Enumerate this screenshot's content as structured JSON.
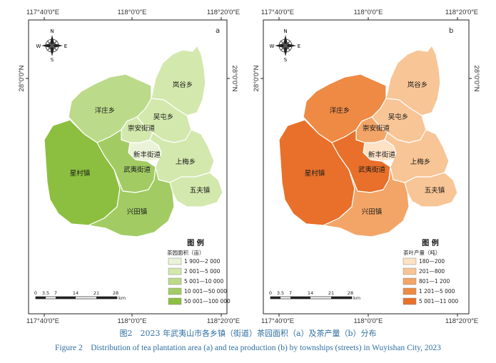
{
  "axes": {
    "top_ticks": [
      "117°40′0″E",
      "118°0′0″E",
      "118°20′0″E"
    ],
    "bottom_ticks": [
      "117°40′0″E",
      "118°0′0″E",
      "118°20′0″E"
    ],
    "lat_label": "28°0′0″N"
  },
  "compass": {
    "n": "N",
    "s": "S",
    "e": "E",
    "w": "W"
  },
  "towns": {
    "langu": "岚谷乡",
    "yangzhuang": "洋庄乡",
    "wutun": "吴屯乡",
    "chongan": "崇安街道",
    "xinfeng": "新丰街道",
    "xingcun": "星村镇",
    "wuyi": "武夷街道",
    "shangmei": "上梅乡",
    "wufu": "五夫镇",
    "xingtian": "兴田镇"
  },
  "panel_a": {
    "letter": "a",
    "legend_title": "图 例",
    "legend_subtitle": "茶园面积（亩）",
    "legend_items": [
      {
        "label": "1 900—2 000",
        "color": "#eaf3d8"
      },
      {
        "label": "2 001—5 000",
        "color": "#d3e8ad"
      },
      {
        "label": "5 001—10 000",
        "color": "#bcdb8a"
      },
      {
        "label": "10 001—50 000",
        "color": "#a2cc63"
      },
      {
        "label": "50 001—100 000",
        "color": "#8cbf3f"
      }
    ]
  },
  "panel_b": {
    "letter": "b",
    "legend_title": "图 例",
    "legend_subtitle": "茶叶产量（吨）",
    "legend_items": [
      {
        "label": "180—200",
        "color": "#fde2c6"
      },
      {
        "label": "201—800",
        "color": "#f8c596"
      },
      {
        "label": "801—1 200",
        "color": "#f3a567"
      },
      {
        "label": "1 201—5 000",
        "color": "#ee8a44"
      },
      {
        "label": "5 001—11 000",
        "color": "#e8702a"
      }
    ]
  },
  "scale_bar": {
    "ticks": [
      "0",
      "3.5",
      "7",
      "14",
      "21",
      "28"
    ],
    "unit": "km"
  },
  "captions": {
    "zh": "图2　2023 年武夷山市各乡镇（街道）茶园面积（a）及茶产量（b）分布",
    "en": "Figure 2　Distribution of tea plantation area (a) and tea production (b) by townships (streets) in Wuyishan City, 2023"
  }
}
